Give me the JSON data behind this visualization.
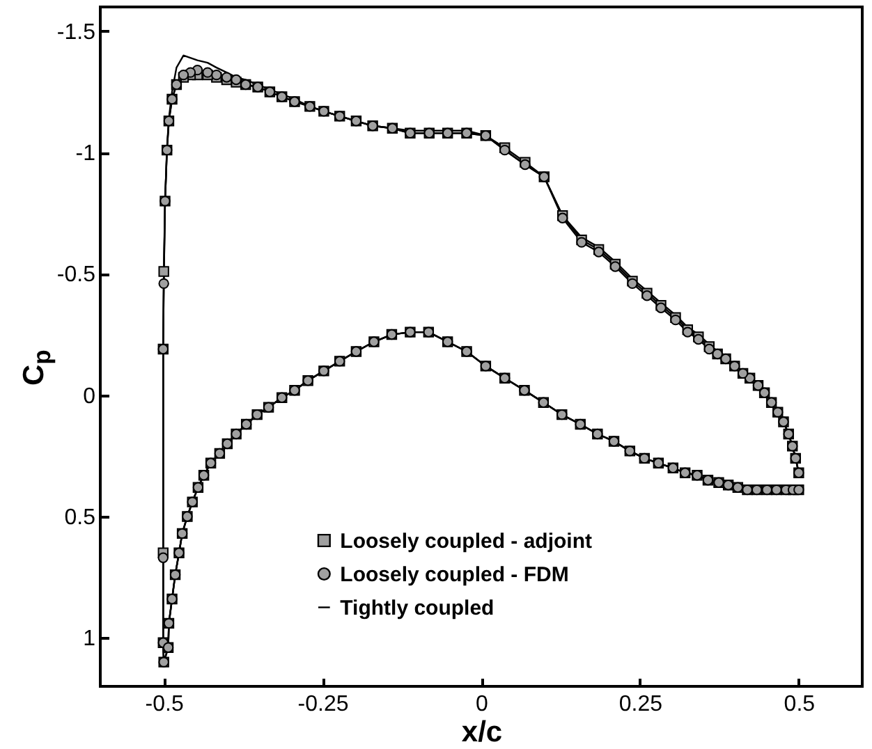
{
  "chart_data": {
    "type": "line",
    "xlabel": "x/c",
    "ylabel": "C$_{p}$",
    "xlim": [
      -0.6,
      0.6
    ],
    "ylim": [
      1.2,
      -1.6
    ],
    "xticks": [
      -0.5,
      -0.25,
      0,
      0.25,
      0.5
    ],
    "yticks": [
      -1.5,
      -1,
      -0.5,
      0,
      0.5,
      1
    ],
    "legend": "bottom",
    "grid": false,
    "series": [
      {
        "name": "Loosely coupled - adjoint",
        "color": "#000000",
        "marker": "square",
        "x": [
          0.5,
          0.495,
          0.49,
          0.484,
          0.476,
          0.467,
          0.457,
          0.446,
          0.436,
          0.423,
          0.412,
          0.399,
          0.385,
          0.372,
          0.359,
          0.342,
          0.325,
          0.306,
          0.283,
          0.261,
          0.238,
          0.211,
          0.185,
          0.158,
          0.128,
          0.099,
          0.069,
          0.037,
          0.007,
          -0.023,
          -0.053,
          -0.082,
          -0.112,
          -0.14,
          -0.171,
          -0.197,
          -0.223,
          -0.248,
          -0.27,
          -0.294,
          -0.314,
          -0.333,
          -0.352,
          -0.371,
          -0.386,
          -0.401,
          -0.417,
          -0.431,
          -0.447,
          -0.458,
          -0.469,
          -0.48,
          -0.487,
          -0.492,
          -0.495,
          -0.498,
          -0.5,
          -0.501,
          -0.501,
          -0.501,
          -0.5,
          -0.493,
          -0.492,
          -0.487,
          -0.482,
          -0.476,
          -0.471,
          -0.463,
          -0.455,
          -0.446,
          -0.437,
          -0.426,
          -0.412,
          -0.4,
          -0.386,
          -0.37,
          -0.353,
          -0.335,
          -0.314,
          -0.294,
          -0.273,
          -0.248,
          -0.223,
          -0.197,
          -0.169,
          -0.141,
          -0.112,
          -0.083,
          -0.053,
          -0.023,
          0.007,
          0.037,
          0.068,
          0.098,
          0.127,
          0.156,
          0.183,
          0.209,
          0.234,
          0.257,
          0.279,
          0.302,
          0.321,
          0.34,
          0.357,
          0.374,
          0.389,
          0.404,
          0.419,
          0.434,
          0.45,
          0.465,
          0.48,
          0.491,
          0.5
        ],
        "values": [
          0.32,
          0.26,
          0.21,
          0.16,
          0.11,
          0.07,
          0.03,
          -0.01,
          -0.04,
          -0.07,
          -0.09,
          -0.12,
          -0.15,
          -0.17,
          -0.2,
          -0.24,
          -0.27,
          -0.32,
          -0.37,
          -0.42,
          -0.47,
          -0.54,
          -0.6,
          -0.64,
          -0.74,
          -0.9,
          -0.96,
          -1.02,
          -1.07,
          -1.08,
          -1.08,
          -1.08,
          -1.08,
          -1.1,
          -1.11,
          -1.13,
          -1.15,
          -1.17,
          -1.19,
          -1.21,
          -1.23,
          -1.25,
          -1.27,
          -1.28,
          -1.29,
          -1.3,
          -1.31,
          -1.32,
          -1.32,
          -1.32,
          -1.31,
          -1.28,
          -1.22,
          -1.13,
          -1.01,
          -0.8,
          -0.51,
          -0.19,
          0.65,
          1.02,
          1.1,
          1.04,
          0.94,
          0.84,
          0.74,
          0.65,
          0.57,
          0.5,
          0.44,
          0.38,
          0.33,
          0.28,
          0.24,
          0.2,
          0.16,
          0.12,
          0.08,
          0.05,
          0.01,
          -0.02,
          -0.06,
          -0.1,
          -0.14,
          -0.18,
          -0.22,
          -0.25,
          -0.26,
          -0.26,
          -0.22,
          -0.18,
          -0.12,
          -0.07,
          -0.02,
          0.03,
          0.08,
          0.12,
          0.16,
          0.19,
          0.23,
          0.26,
          0.28,
          0.3,
          0.32,
          0.33,
          0.35,
          0.36,
          0.37,
          0.38,
          0.39,
          0.39,
          0.39,
          0.39,
          0.39,
          0.39,
          0.39
        ]
      },
      {
        "name": "Loosely coupled - FDM",
        "color": "#000000",
        "marker": "circle",
        "x": [
          0.5,
          0.495,
          0.49,
          0.484,
          0.476,
          0.467,
          0.457,
          0.446,
          0.436,
          0.423,
          0.412,
          0.399,
          0.385,
          0.372,
          0.359,
          0.342,
          0.325,
          0.306,
          0.283,
          0.261,
          0.238,
          0.211,
          0.185,
          0.158,
          0.128,
          0.099,
          0.069,
          0.037,
          0.007,
          -0.023,
          -0.053,
          -0.082,
          -0.112,
          -0.14,
          -0.171,
          -0.197,
          -0.223,
          -0.248,
          -0.27,
          -0.294,
          -0.314,
          -0.333,
          -0.352,
          -0.371,
          -0.386,
          -0.401,
          -0.417,
          -0.431,
          -0.447,
          -0.458,
          -0.469,
          -0.48,
          -0.487,
          -0.492,
          -0.495,
          -0.498,
          -0.5,
          -0.501,
          -0.501,
          -0.501,
          -0.5,
          -0.493,
          -0.492,
          -0.487,
          -0.482,
          -0.476,
          -0.471,
          -0.463,
          -0.455,
          -0.446,
          -0.437,
          -0.426,
          -0.412,
          -0.4,
          -0.386,
          -0.37,
          -0.353,
          -0.335,
          -0.314,
          -0.294,
          -0.273,
          -0.248,
          -0.223,
          -0.197,
          -0.169,
          -0.141,
          -0.112,
          -0.083,
          -0.053,
          -0.023,
          0.007,
          0.037,
          0.068,
          0.098,
          0.127,
          0.156,
          0.183,
          0.209,
          0.234,
          0.257,
          0.279,
          0.302,
          0.321,
          0.34,
          0.357,
          0.374,
          0.389,
          0.404,
          0.419,
          0.434,
          0.45,
          0.465,
          0.48,
          0.491,
          0.5
        ],
        "values": [
          0.32,
          0.26,
          0.21,
          0.16,
          0.11,
          0.07,
          0.03,
          -0.01,
          -0.04,
          -0.07,
          -0.09,
          -0.12,
          -0.15,
          -0.17,
          -0.19,
          -0.23,
          -0.26,
          -0.31,
          -0.36,
          -0.41,
          -0.46,
          -0.53,
          -0.59,
          -0.63,
          -0.73,
          -0.9,
          -0.95,
          -1.01,
          -1.07,
          -1.08,
          -1.08,
          -1.08,
          -1.08,
          -1.1,
          -1.11,
          -1.13,
          -1.15,
          -1.17,
          -1.19,
          -1.21,
          -1.23,
          -1.25,
          -1.27,
          -1.28,
          -1.3,
          -1.31,
          -1.32,
          -1.33,
          -1.34,
          -1.33,
          -1.32,
          -1.28,
          -1.22,
          -1.13,
          -1.01,
          -0.8,
          -0.46,
          -0.19,
          0.67,
          1.02,
          1.1,
          1.04,
          0.94,
          0.84,
          0.74,
          0.65,
          0.57,
          0.5,
          0.44,
          0.38,
          0.33,
          0.28,
          0.24,
          0.2,
          0.16,
          0.12,
          0.08,
          0.05,
          0.01,
          -0.02,
          -0.06,
          -0.1,
          -0.14,
          -0.18,
          -0.22,
          -0.25,
          -0.26,
          -0.26,
          -0.22,
          -0.18,
          -0.12,
          -0.07,
          -0.02,
          0.03,
          0.08,
          0.12,
          0.16,
          0.19,
          0.23,
          0.26,
          0.28,
          0.3,
          0.32,
          0.33,
          0.35,
          0.36,
          0.37,
          0.38,
          0.39,
          0.39,
          0.39,
          0.39,
          0.39,
          0.39,
          0.39
        ]
      },
      {
        "name": "Tightly coupled",
        "color": "#000000",
        "marker": "none",
        "x": [
          0.5,
          0.495,
          0.49,
          0.484,
          0.476,
          0.467,
          0.457,
          0.446,
          0.436,
          0.423,
          0.412,
          0.399,
          0.385,
          0.372,
          0.359,
          0.342,
          0.325,
          0.306,
          0.283,
          0.261,
          0.238,
          0.211,
          0.185,
          0.158,
          0.128,
          0.099,
          0.069,
          0.037,
          0.007,
          -0.023,
          -0.053,
          -0.082,
          -0.112,
          -0.14,
          -0.171,
          -0.197,
          -0.223,
          -0.248,
          -0.27,
          -0.294,
          -0.314,
          -0.333,
          -0.352,
          -0.371,
          -0.386,
          -0.401,
          -0.417,
          -0.431,
          -0.447,
          -0.458,
          -0.469,
          -0.48,
          -0.487,
          -0.492,
          -0.495,
          -0.498,
          -0.5,
          -0.501,
          -0.501,
          -0.501,
          -0.5,
          -0.493,
          -0.492,
          -0.487,
          -0.482,
          -0.476,
          -0.471,
          -0.463,
          -0.455,
          -0.446,
          -0.437,
          -0.426,
          -0.412,
          -0.4,
          -0.386,
          -0.37,
          -0.353,
          -0.335,
          -0.314,
          -0.294,
          -0.273,
          -0.248,
          -0.223,
          -0.197,
          -0.169,
          -0.141,
          -0.112,
          -0.083,
          -0.053,
          -0.023,
          0.007,
          0.037,
          0.068,
          0.098,
          0.127,
          0.156,
          0.183,
          0.209,
          0.234,
          0.257,
          0.279,
          0.302,
          0.321,
          0.34,
          0.357,
          0.374,
          0.389,
          0.404,
          0.419,
          0.434,
          0.45,
          0.465,
          0.48,
          0.491,
          0.5
        ],
        "values": [
          0.32,
          0.26,
          0.21,
          0.16,
          0.11,
          0.07,
          0.03,
          -0.01,
          -0.04,
          -0.07,
          -0.09,
          -0.12,
          -0.15,
          -0.18,
          -0.21,
          -0.25,
          -0.28,
          -0.33,
          -0.38,
          -0.43,
          -0.48,
          -0.55,
          -0.61,
          -0.65,
          -0.74,
          -0.9,
          -0.95,
          -1.01,
          -1.07,
          -1.09,
          -1.09,
          -1.09,
          -1.09,
          -1.1,
          -1.11,
          -1.13,
          -1.15,
          -1.17,
          -1.19,
          -1.22,
          -1.24,
          -1.26,
          -1.28,
          -1.3,
          -1.31,
          -1.33,
          -1.35,
          -1.37,
          -1.38,
          -1.39,
          -1.4,
          -1.35,
          -1.25,
          -1.14,
          -1.02,
          -0.8,
          -0.46,
          -0.19,
          0.67,
          1.02,
          1.1,
          1.04,
          0.94,
          0.84,
          0.74,
          0.65,
          0.57,
          0.5,
          0.44,
          0.38,
          0.33,
          0.28,
          0.24,
          0.2,
          0.16,
          0.12,
          0.08,
          0.05,
          0.01,
          -0.02,
          -0.06,
          -0.1,
          -0.14,
          -0.18,
          -0.22,
          -0.25,
          -0.26,
          -0.26,
          -0.22,
          -0.18,
          -0.12,
          -0.07,
          -0.02,
          0.03,
          0.08,
          0.12,
          0.16,
          0.19,
          0.23,
          0.26,
          0.28,
          0.3,
          0.32,
          0.33,
          0.35,
          0.36,
          0.37,
          0.38,
          0.39,
          0.39,
          0.39,
          0.39,
          0.39,
          0.39,
          0.39
        ]
      }
    ]
  }
}
